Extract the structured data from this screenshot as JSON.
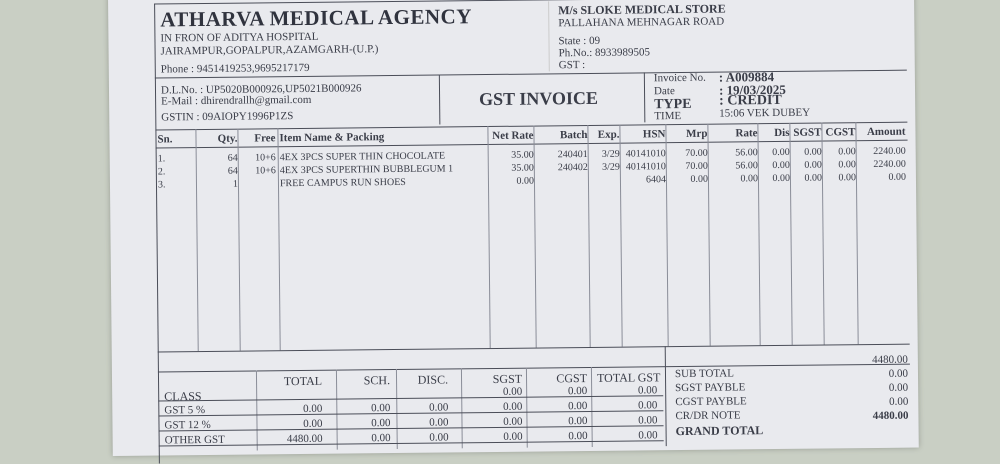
{
  "seller": {
    "name": "ATHARVA MEDICAL AGENCY",
    "address1": "IN FRON OF ADITYA HOSPITAL",
    "address2": "JAIRAMPUR,GOPALPUR,AZAMGARH-(U.P.)",
    "phone": "Phone : 9451419253,9695217179",
    "dl_no": "D.L.No. : UP5020B000926,UP5021B000926",
    "email": "E-Mail : dhirendrallh@gmail.com",
    "gstin": "GSTIN : 09AIOPY1996P1ZS"
  },
  "buyer": {
    "name": "M/s SLOKE MEDICAL STORE",
    "address": "PALLAHANA MEHNAGAR ROAD",
    "state": "State : 09",
    "phone": "Ph.No.: 8933989505",
    "gst": "GST :"
  },
  "doc_title": "GST INVOICE",
  "invoice": {
    "no_label": "Invoice No.",
    "no_value": ": A009884",
    "date_label": "Date",
    "date_value": ": 19/03/2025",
    "type_label": "TYPE",
    "type_value": ": CREDIT",
    "time_label": "TIME",
    "time_value": "15:06 VEK DUBEY"
  },
  "columns": [
    "Sn.",
    "Qty.",
    "Free",
    "Item Name & Packing",
    "Net Rate",
    "Batch",
    "Exp.",
    "HSN",
    "Mrp",
    "Rate",
    "Dis",
    "SGST",
    "CGST",
    "Amount"
  ],
  "rows": [
    [
      "1.",
      "64",
      "10+6",
      "4EX 3PCS SUPER THIN CHOCOLATE",
      "35.00",
      "240401",
      "3/29",
      "40141010",
      "70.00",
      "56.00",
      "0.00",
      "0.00",
      "0.00",
      "2240.00"
    ],
    [
      "2.",
      "64",
      "10+6",
      "4EX 3PCS SUPERTHIN BUBBLEGUM 1",
      "35.00",
      "240402",
      "3/29",
      "40141010",
      "70.00",
      "56.00",
      "0.00",
      "0.00",
      "0.00",
      "2240.00"
    ],
    [
      "3.",
      "1",
      "",
      "FREE CAMPUS RUN SHOES",
      "0.00",
      "",
      "",
      "6404",
      "0.00",
      "0.00",
      "0.00",
      "0.00",
      "0.00",
      "0.00"
    ]
  ],
  "gst_summary": {
    "columns": [
      "CLASS",
      "TOTAL",
      "SCH.",
      "DISC.",
      "SGST",
      "CGST",
      "TOTAL GST"
    ],
    "rows": [
      [
        "",
        "",
        "",
        "",
        "0.00",
        "0.00",
        "0.00"
      ],
      [
        "GST 5 %",
        "0.00",
        "0.00",
        "0.00",
        "0.00",
        "0.00",
        "0.00"
      ],
      [
        "GST 12 %",
        "0.00",
        "0.00",
        "0.00",
        "0.00",
        "0.00",
        "0.00"
      ],
      [
        "OTHER GST",
        "4480.00",
        "0.00",
        "0.00",
        "0.00",
        "0.00",
        "0.00"
      ]
    ]
  },
  "totals": [
    {
      "label": "SUB TOTAL",
      "value": "4480.00"
    },
    {
      "label": "SGST PAYBLE",
      "value": "0.00"
    },
    {
      "label": "CGST PAYBLE",
      "value": "0.00"
    },
    {
      "label": "CR/DR NOTE",
      "value": "0.00"
    },
    {
      "label": "GRAND TOTAL",
      "value": "4480.00"
    }
  ]
}
